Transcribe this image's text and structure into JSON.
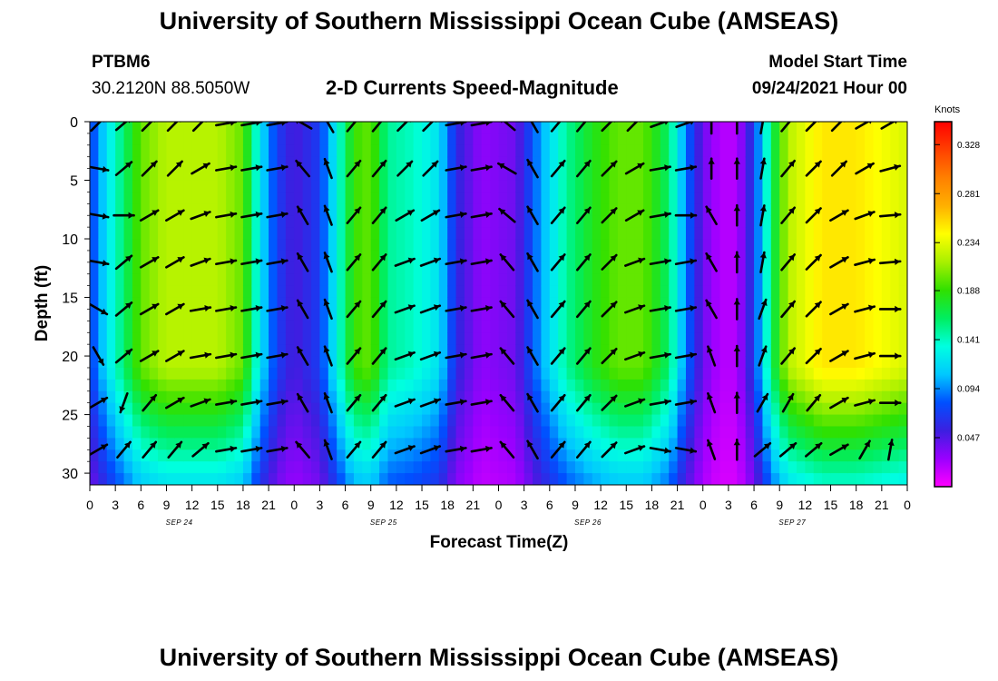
{
  "header": {
    "title": "University of Southern Mississippi Ocean Cube (AMSEAS)",
    "station": "PTBM6",
    "coords": "30.2120N  88.5050W",
    "subtitle": "2-D Currents Speed-Magnitude",
    "model_start_label": "Model Start Time",
    "model_start_value": "09/24/2021 Hour 00"
  },
  "footer": {
    "title": "University of Southern Mississippi Ocean Cube (AMSEAS)"
  },
  "colors": {
    "scale": [
      "#ff00ff",
      "#9a00ff",
      "#3c1fe0",
      "#0050ff",
      "#00c8ff",
      "#00ffe0",
      "#00ee60",
      "#30e000",
      "#a8f000",
      "#ffff00",
      "#ffb000",
      "#ff8000",
      "#ff4000",
      "#ff0000"
    ]
  },
  "chart_data": {
    "type": "heatmap",
    "title": "2-D Currents Speed-Magnitude",
    "xlabel": "Forecast Time(Z)",
    "ylabel": "Depth (ft)",
    "units_label": "Knots",
    "x_range_hours": [
      0,
      96
    ],
    "y_range_ft": [
      0,
      31
    ],
    "y_inverted": true,
    "x_tick_labels": [
      "0",
      "3",
      "6",
      "9",
      "12",
      "15",
      "18",
      "21",
      "0",
      "3",
      "6",
      "9",
      "12",
      "15",
      "18",
      "21",
      "0",
      "3",
      "6",
      "9",
      "12",
      "15",
      "18",
      "21",
      "0",
      "3",
      "6",
      "9",
      "12",
      "15",
      "18",
      "21",
      "0"
    ],
    "date_labels": [
      "SEP 24",
      "SEP 25",
      "SEP 26",
      "SEP 27"
    ],
    "y_tick_labels": [
      "0",
      "5",
      "10",
      "15",
      "20",
      "25",
      "30"
    ],
    "y_ticks": [
      0,
      5,
      10,
      15,
      20,
      25,
      30
    ],
    "colorbar_ticks": [
      "0.047",
      "0.094",
      "0.141",
      "0.188",
      "0.234",
      "0.281",
      "0.328"
    ],
    "colorbar_range": [
      0,
      0.35
    ],
    "speed_profile_by_hour": [
      {
        "hour": 0,
        "speed": 0.07
      },
      {
        "hour": 2,
        "speed": 0.12
      },
      {
        "hour": 4,
        "speed": 0.16
      },
      {
        "hour": 6,
        "speed": 0.2
      },
      {
        "hour": 9,
        "speed": 0.22
      },
      {
        "hour": 12,
        "speed": 0.22
      },
      {
        "hour": 15,
        "speed": 0.22
      },
      {
        "hour": 18,
        "speed": 0.2
      },
      {
        "hour": 20,
        "speed": 0.12
      },
      {
        "hour": 22,
        "speed": 0.07
      },
      {
        "hour": 24,
        "speed": 0.05
      },
      {
        "hour": 27,
        "speed": 0.07
      },
      {
        "hour": 29,
        "speed": 0.13
      },
      {
        "hour": 31,
        "speed": 0.19
      },
      {
        "hour": 33,
        "speed": 0.2
      },
      {
        "hour": 35,
        "speed": 0.15
      },
      {
        "hour": 38,
        "speed": 0.14
      },
      {
        "hour": 41,
        "speed": 0.12
      },
      {
        "hour": 43,
        "speed": 0.06
      },
      {
        "hour": 46,
        "speed": 0.03
      },
      {
        "hour": 50,
        "speed": 0.04
      },
      {
        "hour": 53,
        "speed": 0.1
      },
      {
        "hour": 56,
        "speed": 0.15
      },
      {
        "hour": 59,
        "speed": 0.18
      },
      {
        "hour": 62,
        "speed": 0.2
      },
      {
        "hour": 65,
        "speed": 0.2
      },
      {
        "hour": 68,
        "speed": 0.16
      },
      {
        "hour": 70,
        "speed": 0.09
      },
      {
        "hour": 72,
        "speed": 0.04
      },
      {
        "hour": 74,
        "speed": 0.02
      },
      {
        "hour": 76,
        "speed": 0.02
      },
      {
        "hour": 78,
        "speed": 0.07
      },
      {
        "hour": 80,
        "speed": 0.16
      },
      {
        "hour": 82,
        "speed": 0.22
      },
      {
        "hour": 86,
        "speed": 0.25
      },
      {
        "hour": 90,
        "speed": 0.25
      },
      {
        "hour": 93,
        "speed": 0.24
      },
      {
        "hour": 96,
        "speed": 0.23
      }
    ],
    "vector_hours": [
      1,
      4,
      7,
      10,
      13,
      16,
      19,
      22,
      25,
      28,
      31,
      34,
      37,
      40,
      43,
      46,
      49,
      52,
      55,
      58,
      61,
      64,
      67,
      70,
      73,
      76,
      79,
      82,
      85,
      88,
      91,
      94
    ],
    "vector_depths_ft": [
      0,
      4,
      8,
      12,
      16,
      20,
      24,
      28
    ],
    "vector_directions_deg": [
      [
        45,
        50,
        45,
        45,
        45,
        80,
        80,
        80,
        300,
        330,
        40,
        40,
        45,
        45,
        80,
        80,
        310,
        330,
        40,
        40,
        45,
        45,
        70,
        70,
        0,
        0,
        10,
        40,
        45,
        45,
        60,
        60
      ],
      [
        100,
        50,
        45,
        45,
        60,
        80,
        80,
        80,
        320,
        340,
        40,
        40,
        45,
        45,
        80,
        80,
        300,
        330,
        40,
        40,
        45,
        60,
        80,
        80,
        0,
        0,
        10,
        40,
        45,
        45,
        60,
        75
      ],
      [
        100,
        90,
        60,
        60,
        70,
        80,
        80,
        80,
        330,
        340,
        40,
        40,
        60,
        60,
        80,
        80,
        310,
        330,
        40,
        40,
        45,
        60,
        80,
        90,
        330,
        0,
        10,
        40,
        45,
        60,
        70,
        85
      ],
      [
        100,
        50,
        60,
        60,
        70,
        80,
        80,
        80,
        330,
        340,
        40,
        40,
        70,
        70,
        80,
        80,
        320,
        330,
        40,
        40,
        45,
        70,
        80,
        80,
        330,
        0,
        10,
        40,
        45,
        60,
        75,
        85
      ],
      [
        120,
        50,
        60,
        60,
        80,
        80,
        80,
        80,
        330,
        340,
        40,
        40,
        70,
        70,
        80,
        80,
        320,
        330,
        40,
        40,
        45,
        70,
        80,
        80,
        330,
        0,
        20,
        40,
        45,
        60,
        75,
        90
      ],
      [
        150,
        50,
        60,
        60,
        80,
        80,
        80,
        80,
        330,
        340,
        40,
        40,
        70,
        70,
        80,
        80,
        320,
        330,
        40,
        40,
        45,
        70,
        80,
        80,
        340,
        0,
        20,
        40,
        45,
        60,
        75,
        90
      ],
      [
        60,
        200,
        40,
        60,
        70,
        80,
        80,
        80,
        330,
        340,
        40,
        40,
        70,
        70,
        80,
        80,
        320,
        330,
        40,
        40,
        45,
        70,
        80,
        80,
        340,
        0,
        30,
        30,
        40,
        60,
        75,
        90
      ],
      [
        60,
        40,
        40,
        40,
        50,
        80,
        80,
        80,
        320,
        340,
        40,
        40,
        70,
        70,
        80,
        80,
        320,
        330,
        40,
        40,
        45,
        70,
        100,
        100,
        340,
        0,
        50,
        50,
        50,
        60,
        30,
        10
      ]
    ]
  }
}
